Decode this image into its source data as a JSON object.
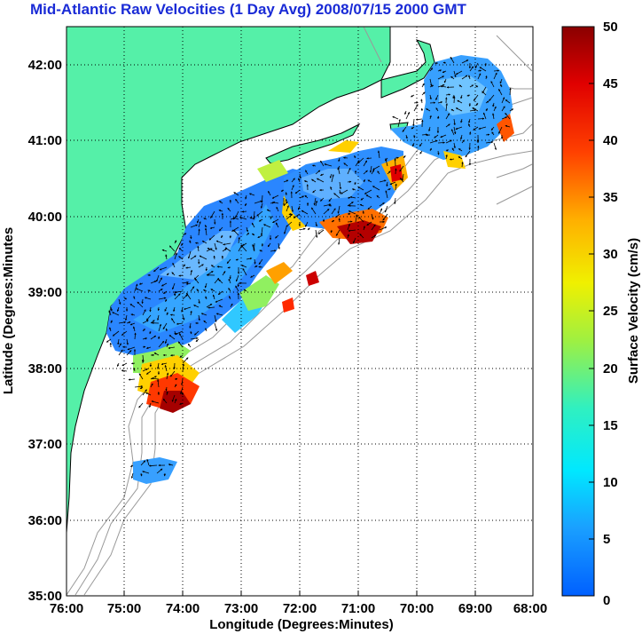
{
  "title": "Mid-Atlantic Raw Velocities (1 Day Avg) 2008/07/15 2000 GMT",
  "x_axis": {
    "label": "Longitude (Degrees:Minutes)",
    "ticks": [
      "76:00",
      "75:00",
      "74:00",
      "73:00",
      "72:00",
      "71:00",
      "70:00",
      "69:00",
      "68:00"
    ]
  },
  "y_axis": {
    "label": "Latitude (Degrees:Minutes",
    "ticks": [
      "35:00",
      "36:00",
      "37:00",
      "38:00",
      "39:00",
      "40:00",
      "41:00",
      "42:00"
    ]
  },
  "colorbar": {
    "label": "Surface Velocity (cm/s)",
    "ticks": [
      "0",
      "5",
      "10",
      "15",
      "20",
      "25",
      "30",
      "35",
      "40",
      "45",
      "50"
    ],
    "range": [
      0,
      50
    ],
    "colormap": "jet"
  },
  "colors": {
    "land": "#55f0a8",
    "title": "#1a2bd6",
    "bathymetry": "#999999"
  },
  "chart_data": {
    "type": "heatmap",
    "title": "Mid-Atlantic Raw Velocities (1 Day Avg) 2008/07/15 2000 GMT",
    "xlabel": "Longitude (Degrees:Minutes)",
    "ylabel": "Latitude (Degrees:Minutes",
    "xlim": [
      -76,
      -68
    ],
    "ylim": [
      35,
      42.5
    ],
    "grid": true,
    "value_label": "Surface Velocity (cm/s)",
    "value_range": [
      0,
      50
    ]
  }
}
